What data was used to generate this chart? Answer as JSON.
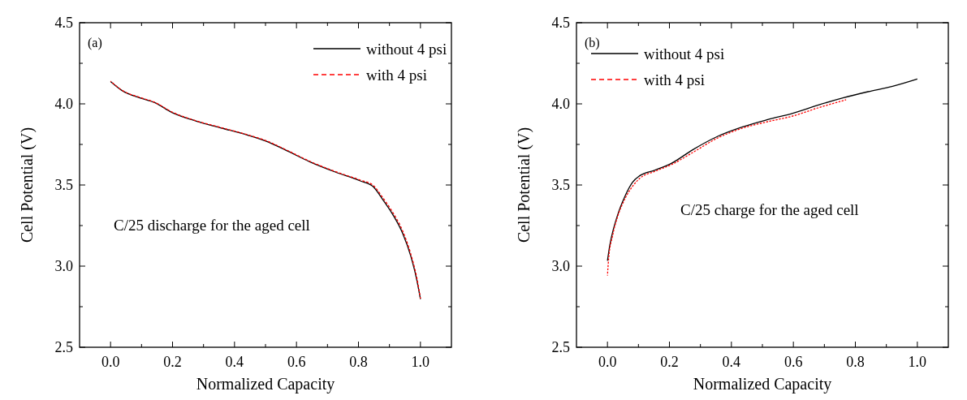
{
  "chart_data": [
    {
      "type": "line",
      "xlabel": "Normalized Capacity",
      "ylabel": "Cell Potential (V)",
      "annotations": [
        "(a)",
        "C/25 discharge for the aged cell"
      ],
      "xlim": [
        -0.1,
        1.1
      ],
      "ylim": [
        2.5,
        4.5
      ],
      "xticks": [
        {
          "value": 0,
          "label": "0.0"
        },
        {
          "value": 0.1,
          "label": null
        },
        {
          "value": 0.2,
          "label": "0.2"
        },
        {
          "value": 0.3,
          "label": null
        },
        {
          "value": 0.4,
          "label": "0.4"
        },
        {
          "value": 0.5,
          "label": null
        },
        {
          "value": 0.6,
          "label": "0.6"
        },
        {
          "value": 0.7,
          "label": null
        },
        {
          "value": 0.8,
          "label": "0.8"
        },
        {
          "value": 0.9,
          "label": null
        },
        {
          "value": 1,
          "label": "1.0"
        }
      ],
      "yticks": [
        2.5,
        {
          "value": 2.75,
          "label": null
        },
        {
          "value": 3,
          "label": "3.0"
        },
        {
          "value": 3.25,
          "label": null
        },
        3.5,
        {
          "value": 3.75,
          "label": null
        },
        {
          "value": 4,
          "label": "4.0"
        },
        {
          "value": 4.25,
          "label": null
        },
        4.5
      ],
      "legend": "top right",
      "grid": false,
      "series": [
        {
          "name": "without 4 psi",
          "color": "#000000",
          "line_style": "solid",
          "x": [
            0,
            0.036,
            0.101,
            0.142,
            0.198,
            0.279,
            0.36,
            0.441,
            0.506,
            0.563,
            0.644,
            0.725,
            0.806,
            0.846,
            0.879,
            0.911,
            0.943,
            0.968,
            0.988,
            1.0
          ],
          "values": [
            4.137,
            4.083,
            4.033,
            4.008,
            3.947,
            3.892,
            3.85,
            3.808,
            3.767,
            3.717,
            3.642,
            3.58,
            3.525,
            3.492,
            3.408,
            3.317,
            3.2,
            3.067,
            2.917,
            2.797
          ]
        },
        {
          "name": "with 4 psi",
          "color": "#ff0000",
          "line_style": "dashed",
          "x": [
            0,
            0.036,
            0.101,
            0.142,
            0.198,
            0.279,
            0.36,
            0.441,
            0.506,
            0.563,
            0.644,
            0.725,
            0.806,
            0.846,
            0.879,
            0.911,
            0.943,
            0.968,
            0.988,
            1.0
          ],
          "values": [
            4.14,
            4.085,
            4.036,
            4.01,
            3.95,
            3.894,
            3.852,
            3.81,
            3.77,
            3.72,
            3.645,
            3.583,
            3.53,
            3.5,
            3.42,
            3.33,
            3.215,
            3.08,
            2.93,
            2.8
          ]
        }
      ]
    },
    {
      "type": "line",
      "xlabel": "Normalized Capacity",
      "ylabel": "Cell Potential (V)",
      "annotations": [
        "(b)",
        "C/25 charge for the aged cell"
      ],
      "xlim": [
        -0.1,
        1.1
      ],
      "ylim": [
        2.5,
        4.5
      ],
      "xticks": [
        {
          "value": 0,
          "label": "0.0"
        },
        {
          "value": 0.1,
          "label": null
        },
        {
          "value": 0.2,
          "label": "0.2"
        },
        {
          "value": 0.3,
          "label": null
        },
        {
          "value": 0.4,
          "label": "0.4"
        },
        {
          "value": 0.5,
          "label": null
        },
        {
          "value": 0.6,
          "label": "0.6"
        },
        {
          "value": 0.7,
          "label": null
        },
        {
          "value": 0.8,
          "label": "0.8"
        },
        {
          "value": 0.9,
          "label": null
        },
        {
          "value": 1,
          "label": "1.0"
        }
      ],
      "yticks": [
        2.5,
        {
          "value": 2.75,
          "label": null
        },
        {
          "value": 3,
          "label": "3.0"
        },
        {
          "value": 3.25,
          "label": null
        },
        3.5,
        {
          "value": 3.75,
          "label": null
        },
        {
          "value": 4,
          "label": "4.0"
        },
        {
          "value": 4.25,
          "label": null
        },
        4.5
      ],
      "legend": "top left",
      "grid": false,
      "series": [
        {
          "name": "without 4 psi",
          "color": "#000000",
          "line_style": "solid",
          "x": [
            0,
            0.008,
            0.02,
            0.036,
            0.057,
            0.081,
            0.105,
            0.154,
            0.206,
            0.275,
            0.356,
            0.436,
            0.517,
            0.598,
            0.679,
            0.76,
            0.841,
            0.92,
            1.0
          ],
          "values": [
            3.033,
            3.133,
            3.233,
            3.333,
            3.433,
            3.517,
            3.558,
            3.592,
            3.633,
            3.717,
            3.8,
            3.858,
            3.903,
            3.942,
            3.992,
            4.037,
            4.075,
            4.108,
            4.153
          ]
        },
        {
          "name": "with 4 psi",
          "color": "#ff0000",
          "line_style": "dashed",
          "x": [
            0,
            0.004,
            0.016,
            0.032,
            0.057,
            0.081,
            0.105,
            0.154,
            0.206,
            0.275,
            0.356,
            0.436,
            0.517,
            0.598,
            0.679,
            0.77
          ],
          "values": [
            2.942,
            3.05,
            3.183,
            3.3,
            3.417,
            3.492,
            3.542,
            3.585,
            3.625,
            3.7,
            3.79,
            3.85,
            3.89,
            3.925,
            3.975,
            4.025
          ]
        }
      ]
    }
  ]
}
